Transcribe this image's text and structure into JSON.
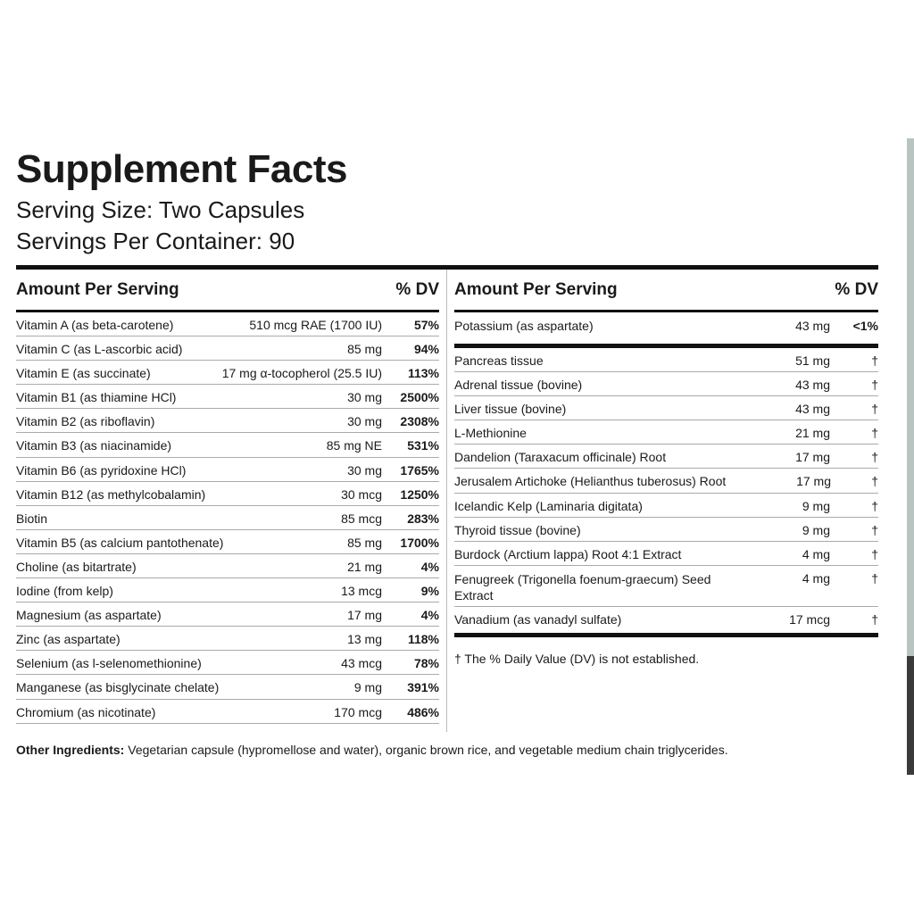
{
  "label": {
    "title": "Supplement Facts",
    "serving_size": "Serving Size: Two Capsules",
    "servings_per_container": "Servings Per Container: 90"
  },
  "left_column": {
    "header_amount": "Amount Per Serving",
    "header_dv": "% DV",
    "rows": [
      {
        "name": "Vitamin A (as beta-carotene)",
        "amount": "510 mcg RAE (1700 IU)",
        "dv": "57%"
      },
      {
        "name": "Vitamin C (as L-ascorbic acid)",
        "amount": "85 mg",
        "dv": "94%"
      },
      {
        "name": "Vitamin E (as succinate)",
        "amount": "17 mg α-tocopherol (25.5 IU)",
        "dv": "113%"
      },
      {
        "name": "Vitamin B1 (as thiamine HCl)",
        "amount": "30 mg",
        "dv": "2500%"
      },
      {
        "name": "Vitamin B2 (as riboflavin)",
        "amount": "30 mg",
        "dv": "2308%"
      },
      {
        "name": "Vitamin B3 (as niacinamide)",
        "amount": "85 mg NE",
        "dv": "531%"
      },
      {
        "name": "Vitamin B6 (as pyridoxine HCl)",
        "amount": "30 mg",
        "dv": "1765%"
      },
      {
        "name": "Vitamin B12 (as methylcobalamin)",
        "amount": "30 mcg",
        "dv": "1250%"
      },
      {
        "name": "Biotin",
        "amount": "85 mcg",
        "dv": "283%"
      },
      {
        "name": "Vitamin B5 (as calcium pantothenate)",
        "amount": "85 mg",
        "dv": "1700%"
      },
      {
        "name": "Choline (as bitartrate)",
        "amount": "21 mg",
        "dv": "4%"
      },
      {
        "name": "Iodine (from kelp)",
        "amount": "13 mcg",
        "dv": "9%"
      },
      {
        "name": "Magnesium (as aspartate)",
        "amount": "17 mg",
        "dv": "4%"
      },
      {
        "name": "Zinc (as aspartate)",
        "amount": "13 mg",
        "dv": "118%"
      },
      {
        "name": "Selenium (as l-selenomethionine)",
        "amount": "43 mcg",
        "dv": "78%"
      },
      {
        "name": "Manganese (as bisglycinate chelate)",
        "amount": "9 mg",
        "dv": "391%"
      },
      {
        "name": "Chromium (as nicotinate)",
        "amount": "170 mcg",
        "dv": "486%"
      }
    ]
  },
  "right_column": {
    "header_amount": "Amount Per Serving",
    "header_dv": "% DV",
    "potassium": {
      "name": "Potassium (as aspartate)",
      "amount": "43 mg",
      "dv": "<1%"
    },
    "rows": [
      {
        "name": "Pancreas tissue",
        "amount": "51 mg",
        "dv": "†"
      },
      {
        "name": "Adrenal tissue (bovine)",
        "amount": "43 mg",
        "dv": "†"
      },
      {
        "name": "Liver tissue (bovine)",
        "amount": "43 mg",
        "dv": "†"
      },
      {
        "name": "L-Methionine",
        "amount": "21 mg",
        "dv": "†"
      },
      {
        "name": "Dandelion (Taraxacum officinale) Root",
        "amount": "17 mg",
        "dv": "†"
      },
      {
        "name": "Jerusalem Artichoke (Helianthus tuberosus) Root",
        "amount": "17 mg",
        "dv": "†"
      },
      {
        "name": "Icelandic Kelp (Laminaria digitata)",
        "amount": "9 mg",
        "dv": "†"
      },
      {
        "name": "Thyroid tissue (bovine)",
        "amount": "9 mg",
        "dv": "†"
      },
      {
        "name": "Burdock (Arctium lappa) Root 4:1 Extract",
        "amount": "4 mg",
        "dv": "†"
      },
      {
        "name": "Fenugreek (Trigonella foenum-graecum) Seed Extract",
        "amount": "4 mg",
        "dv": "†"
      },
      {
        "name": "Vanadium (as vanadyl sulfate)",
        "amount": "17 mcg",
        "dv": "†"
      }
    ],
    "footnote": "† The % Daily Value (DV) is not established."
  },
  "other_ingredients": {
    "label": "Other Ingredients:",
    "text": " Vegetarian capsule (hypromellose and water), organic brown rice, and vegetable medium chain triglycerides."
  }
}
